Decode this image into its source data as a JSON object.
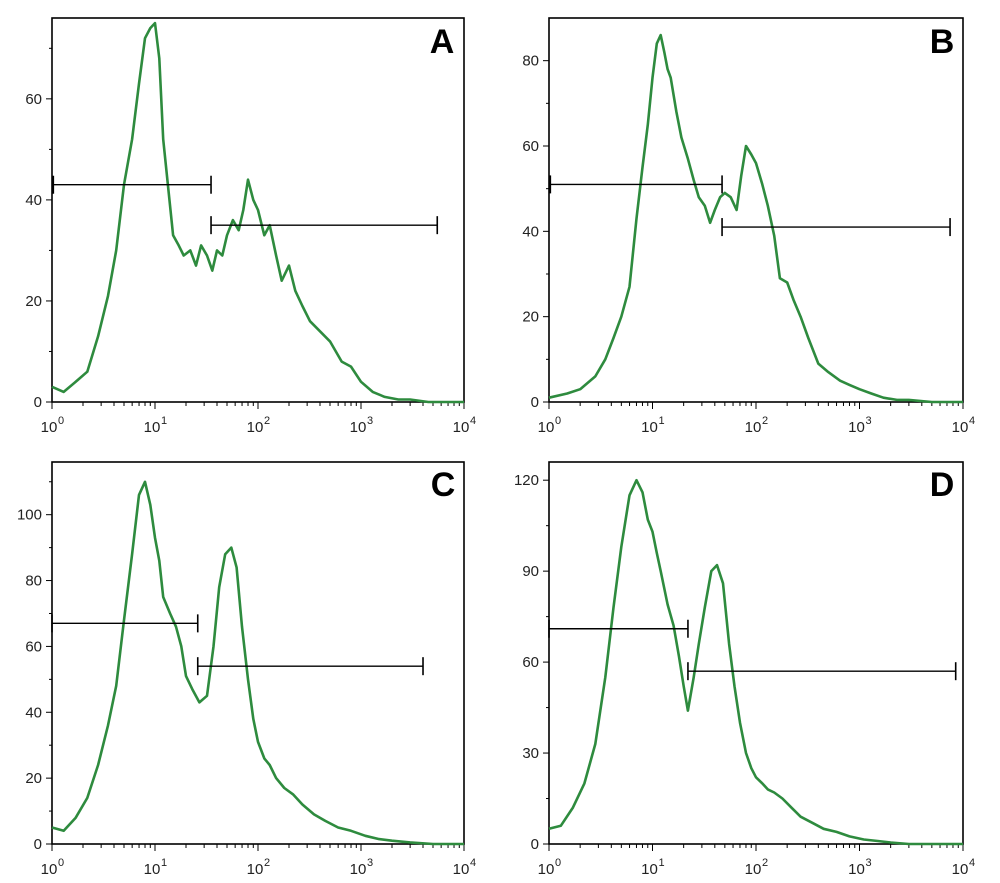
{
  "colors": {
    "histogram": "#2e8b3e",
    "axes": "#000000",
    "gates": "#000000"
  },
  "chart_data": [
    {
      "panel": "A",
      "type": "line",
      "xscale": "log",
      "xlim": [
        1,
        10000
      ],
      "ylim": [
        0,
        76
      ],
      "xtick_base": [
        "10",
        "10",
        "10",
        "10",
        "10"
      ],
      "xtick_exp": [
        "0",
        "1",
        "2",
        "3",
        "4"
      ],
      "yticks": [
        0,
        20,
        40,
        60
      ],
      "ytick_labels": [
        "0",
        "20",
        "40",
        "60"
      ],
      "series": [
        {
          "x": [
            1,
            1.3,
            1.7,
            2.2,
            2.8,
            3.5,
            4.2,
            5,
            6,
            7,
            8,
            9,
            10,
            11,
            12,
            13.5,
            15,
            17,
            19,
            22,
            25,
            28,
            32,
            36,
            40,
            45,
            50,
            57,
            65,
            72,
            80,
            90,
            100,
            115,
            130,
            150,
            170,
            200,
            230,
            270,
            320,
            400,
            500,
            650,
            800,
            1000,
            1300,
            1700,
            2300,
            3000,
            4500,
            7000,
            10000
          ],
          "y": [
            3,
            2,
            4,
            6,
            13,
            21,
            30,
            43,
            52,
            63,
            72,
            74,
            75,
            68,
            52,
            42,
            33,
            31,
            29,
            30,
            27,
            31,
            29,
            26,
            30,
            29,
            33,
            36,
            34,
            38,
            44,
            40,
            38,
            33,
            35,
            29,
            24,
            27,
            22,
            19,
            16,
            14,
            12,
            8,
            7,
            4,
            2,
            1,
            0.5,
            0.5,
            0,
            0,
            0
          ]
        }
      ],
      "gates": [
        {
          "x1": 1.03,
          "x2": 35,
          "y": 43
        },
        {
          "x1": 35,
          "x2": 5500,
          "y": 35
        }
      ]
    },
    {
      "panel": "B",
      "type": "line",
      "xscale": "log",
      "xlim": [
        1,
        10000
      ],
      "ylim": [
        0,
        90
      ],
      "xtick_base": [
        "10",
        "10",
        "10",
        "10",
        "10"
      ],
      "xtick_exp": [
        "0",
        "1",
        "2",
        "3",
        "4"
      ],
      "yticks": [
        0,
        20,
        40,
        60,
        80
      ],
      "ytick_labels": [
        "0",
        "20",
        "40",
        "60",
        "80"
      ],
      "series": [
        {
          "x": [
            1,
            1.5,
            2,
            2.8,
            3.5,
            4.2,
            5,
            6,
            7,
            8,
            9,
            10,
            11,
            12,
            13,
            14,
            15,
            17,
            19,
            22,
            25,
            28,
            32,
            36,
            40,
            45,
            50,
            57,
            65,
            72,
            80,
            90,
            100,
            115,
            130,
            150,
            170,
            200,
            230,
            270,
            320,
            400,
            500,
            650,
            800,
            1000,
            1300,
            1700,
            2300,
            3000,
            5000,
            10000
          ],
          "y": [
            1,
            2,
            3,
            6,
            10,
            15,
            20,
            27,
            43,
            55,
            65,
            76,
            84,
            86,
            82,
            78,
            76,
            68,
            62,
            57,
            52,
            48,
            46,
            42,
            45,
            48,
            49,
            48,
            45,
            53,
            60,
            58,
            56,
            51,
            46,
            39,
            29,
            28,
            24,
            20,
            15,
            9,
            7,
            5,
            4,
            3,
            2,
            1,
            0.5,
            0.5,
            0,
            0
          ]
        }
      ],
      "gates": [
        {
          "x1": 1.03,
          "x2": 47,
          "y": 51
        },
        {
          "x1": 47,
          "x2": 7500,
          "y": 41
        }
      ]
    },
    {
      "panel": "C",
      "type": "line",
      "xscale": "log",
      "xlim": [
        1,
        10000
      ],
      "ylim": [
        0,
        116
      ],
      "xtick_base": [
        "10",
        "10",
        "10",
        "10",
        "10"
      ],
      "xtick_exp": [
        "0",
        "1",
        "2",
        "3",
        "4"
      ],
      "yticks": [
        0,
        20,
        40,
        60,
        80,
        100
      ],
      "ytick_labels": [
        "0",
        "20",
        "40",
        "60",
        "80",
        "100"
      ],
      "series": [
        {
          "x": [
            1,
            1.3,
            1.7,
            2.2,
            2.8,
            3.5,
            4.2,
            5,
            6,
            7,
            8,
            9,
            10,
            11,
            12,
            14,
            16,
            18,
            20,
            23,
            27,
            32,
            37,
            42,
            48,
            55,
            62,
            70,
            80,
            90,
            100,
            115,
            130,
            150,
            180,
            220,
            270,
            350,
            450,
            600,
            800,
            1100,
            1500,
            2000,
            3000,
            5000,
            10000
          ],
          "y": [
            5,
            4,
            8,
            14,
            24,
            36,
            48,
            68,
            88,
            106,
            110,
            103,
            93,
            86,
            75,
            70,
            66,
            60,
            51,
            47,
            43,
            45,
            60,
            78,
            88,
            90,
            84,
            66,
            50,
            38,
            31,
            26,
            24,
            20,
            17,
            15,
            12,
            9,
            7,
            5,
            4,
            2.5,
            1.5,
            1,
            0.5,
            0,
            0
          ]
        }
      ],
      "gates": [
        {
          "x1": 1,
          "x2": 26,
          "y": 67
        },
        {
          "x1": 26,
          "x2": 4000,
          "y": 54
        }
      ]
    },
    {
      "panel": "D",
      "type": "line",
      "xscale": "log",
      "xlim": [
        1,
        10000
      ],
      "ylim": [
        0,
        126
      ],
      "xtick_base": [
        "10",
        "10",
        "10",
        "10",
        "10"
      ],
      "xtick_exp": [
        "0",
        "1",
        "2",
        "3",
        "4"
      ],
      "yticks": [
        0,
        30,
        60,
        90,
        120
      ],
      "ytick_labels": [
        "0",
        "30",
        "60",
        "90",
        "120"
      ],
      "series": [
        {
          "x": [
            1,
            1.3,
            1.7,
            2.2,
            2.8,
            3.5,
            4.2,
            5,
            6,
            7,
            8,
            9,
            10,
            11,
            12,
            14,
            16,
            18,
            20,
            22,
            25,
            28,
            32,
            37,
            42,
            48,
            55,
            62,
            70,
            80,
            90,
            100,
            115,
            130,
            150,
            180,
            220,
            270,
            350,
            450,
            600,
            800,
            1100,
            1500,
            2000,
            3000,
            5000,
            10000
          ],
          "y": [
            5,
            6,
            12,
            20,
            33,
            55,
            78,
            98,
            115,
            120,
            116,
            107,
            103,
            96,
            90,
            79,
            72,
            62,
            52,
            44,
            55,
            66,
            78,
            90,
            92,
            86,
            66,
            52,
            40,
            30,
            25,
            22,
            20,
            18,
            17,
            15,
            12,
            9,
            7,
            5,
            4,
            2.5,
            1.5,
            1,
            0.5,
            0,
            0,
            0
          ]
        }
      ],
      "gates": [
        {
          "x1": 1,
          "x2": 22,
          "y": 71
        },
        {
          "x1": 22,
          "x2": 8500,
          "y": 57
        }
      ]
    }
  ]
}
